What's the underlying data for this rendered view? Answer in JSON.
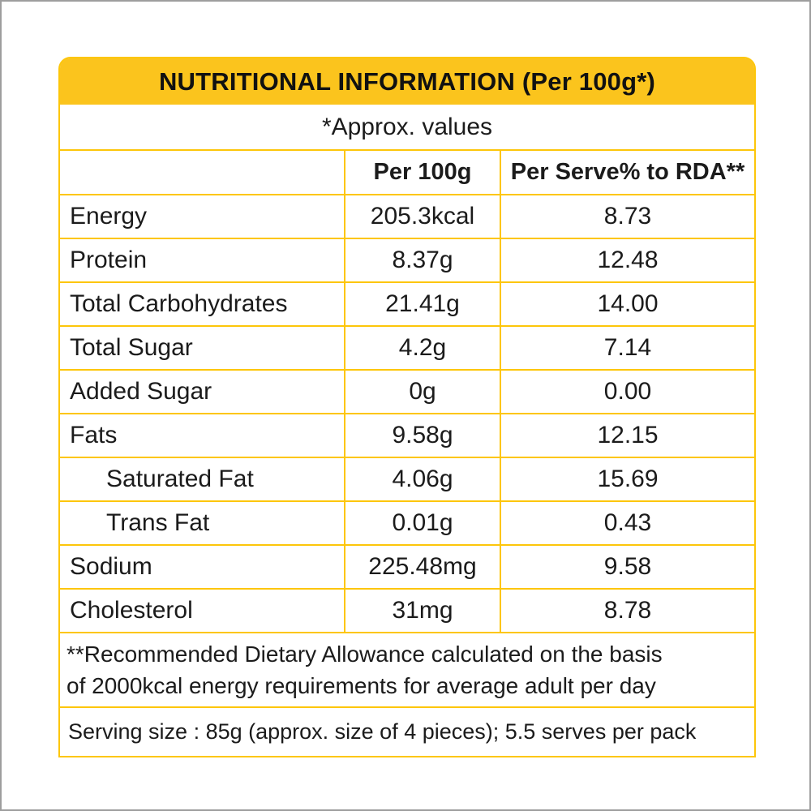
{
  "label": {
    "title": "NUTRITIONAL INFORMATION (Per 100g*)",
    "approx_note": "*Approx. values",
    "columns": {
      "nutrient": "",
      "per_100g": "Per 100g",
      "per_serve": "Per Serve% to RDA**"
    },
    "rows": [
      {
        "label": "Energy",
        "per_100g": "205.3kcal",
        "per_serve_pct_rda": "8.73",
        "indent": false
      },
      {
        "label": "Protein",
        "per_100g": "8.37g",
        "per_serve_pct_rda": "12.48",
        "indent": false
      },
      {
        "label": "Total Carbohydrates",
        "per_100g": "21.41g",
        "per_serve_pct_rda": "14.00",
        "indent": false
      },
      {
        "label": "Total Sugar",
        "per_100g": "4.2g",
        "per_serve_pct_rda": "7.14",
        "indent": false
      },
      {
        "label": "Added Sugar",
        "per_100g": "0g",
        "per_serve_pct_rda": "0.00",
        "indent": false
      },
      {
        "label": "Fats",
        "per_100g": "9.58g",
        "per_serve_pct_rda": "12.15",
        "indent": false
      },
      {
        "label": "Saturated Fat",
        "per_100g": "4.06g",
        "per_serve_pct_rda": "15.69",
        "indent": true
      },
      {
        "label": "Trans Fat",
        "per_100g": "0.01g",
        "per_serve_pct_rda": "0.43",
        "indent": true
      },
      {
        "label": "Sodium",
        "per_100g": "225.48mg",
        "per_serve_pct_rda": "9.58",
        "indent": false
      },
      {
        "label": "Cholesterol",
        "per_100g": "31mg",
        "per_serve_pct_rda": "8.78",
        "indent": false
      }
    ],
    "rda_footnote_lines": [
      "**Recommended Dietary Allowance calculated on the basis",
      "of 2000kcal energy requirements for average adult per day"
    ],
    "serving_note": "Serving size : 85g (approx. size of 4 pieces); 5.5 serves per pack",
    "colors": {
      "accent_yellow": "#FBC41D",
      "grid_line_yellow": "#FDC60A",
      "text_black": "#1B1B1B"
    }
  }
}
